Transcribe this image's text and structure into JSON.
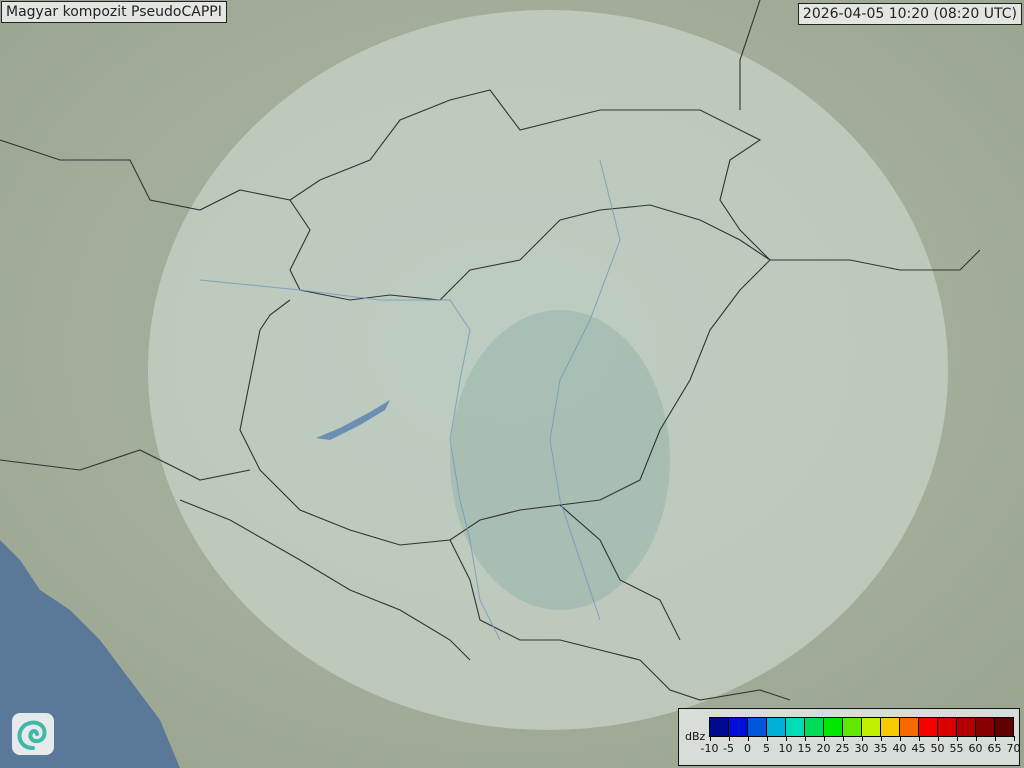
{
  "header": {
    "title": "Magyar kompozit  PseudoCAPPI",
    "timestamp": "2026-04-05 10:20 (08:20 UTC)"
  },
  "logo": {
    "icon": "swirl-logo-icon"
  },
  "legend": {
    "unit": "dBz",
    "ticks": [
      "-10",
      "-5",
      "0",
      "5",
      "10",
      "15",
      "20",
      "25",
      "30",
      "35",
      "40",
      "45",
      "50",
      "55",
      "60",
      "65",
      "70"
    ],
    "colors": [
      "#000a90",
      "#0010d8",
      "#0058d8",
      "#00b0d8",
      "#00dcb8",
      "#00dc58",
      "#00e800",
      "#60e800",
      "#c0f000",
      "#f8c800",
      "#f86800",
      "#f80000",
      "#d80000",
      "#b00000",
      "#880000",
      "#600000"
    ]
  },
  "map": {
    "land_color": "#9aaa98",
    "sea_color": "#5a7898",
    "coverage_color": "#d8e6e0"
  }
}
